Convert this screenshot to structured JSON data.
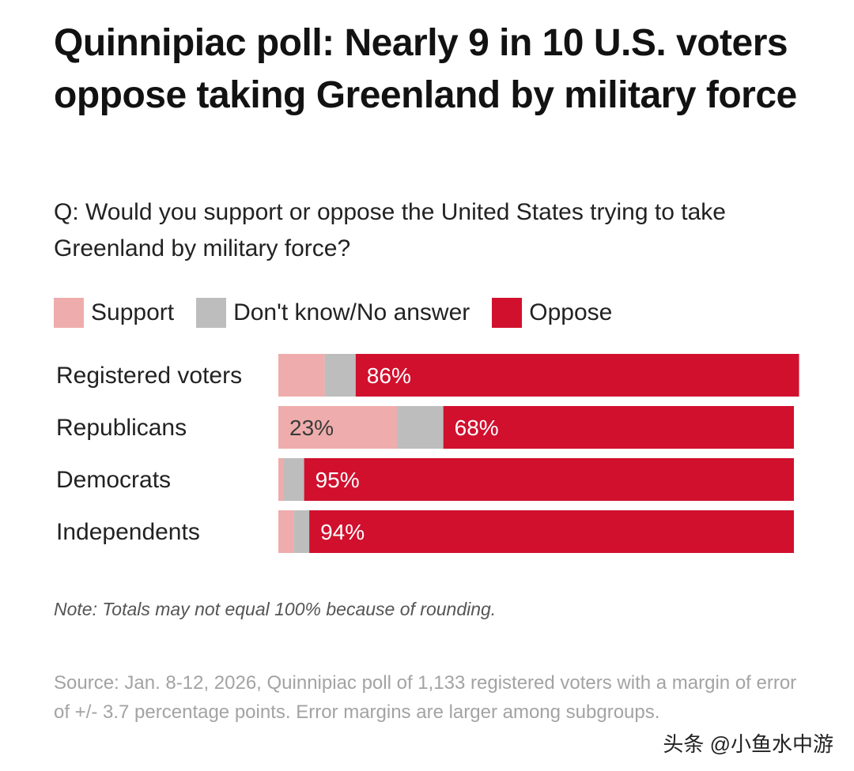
{
  "title": "Quinnipiac poll: Nearly 9 in 10 U.S. voters oppose taking Greenland by military force",
  "question": "Q: Would you support or oppose the United States trying to take Greenland by military force?",
  "note": "Note: Totals may not equal 100% because of rounding.",
  "source": "Source: Jan. 8-12, 2026, Quinnipiac poll of 1,133 registered voters with a margin of error of +/- 3.7 percentage points. Error margins are larger among subgroups.",
  "watermark": "头条 @小鱼水中游",
  "colors": {
    "support": "#eeadac",
    "dont_know": "#bdbdbd",
    "oppose": "#d1102e",
    "label_on_light": "#3a3a3a",
    "label_on_dark": "#ffffff"
  },
  "chart_data": {
    "type": "bar",
    "orientation": "horizontal",
    "stacked": true,
    "title": "Quinnipiac poll: Nearly 9 in 10 U.S. voters oppose taking Greenland by military force",
    "xlim": [
      0,
      100
    ],
    "legend_position": "top-left",
    "grid": false,
    "categories": [
      "Registered voters",
      "Republicans",
      "Democrats",
      "Independents"
    ],
    "series": [
      {
        "name": "Support",
        "key": "support",
        "values": [
          9,
          23,
          1,
          3
        ],
        "labels": [
          "",
          "23%",
          "",
          ""
        ]
      },
      {
        "name": "Don't know/No answer",
        "key": "dont_know",
        "values": [
          6,
          9,
          4,
          3
        ],
        "labels": [
          "",
          "",
          "",
          ""
        ]
      },
      {
        "name": "Oppose",
        "key": "oppose",
        "values": [
          86,
          68,
          95,
          94
        ],
        "labels": [
          "86%",
          "68%",
          "95%",
          "94%"
        ]
      }
    ]
  }
}
